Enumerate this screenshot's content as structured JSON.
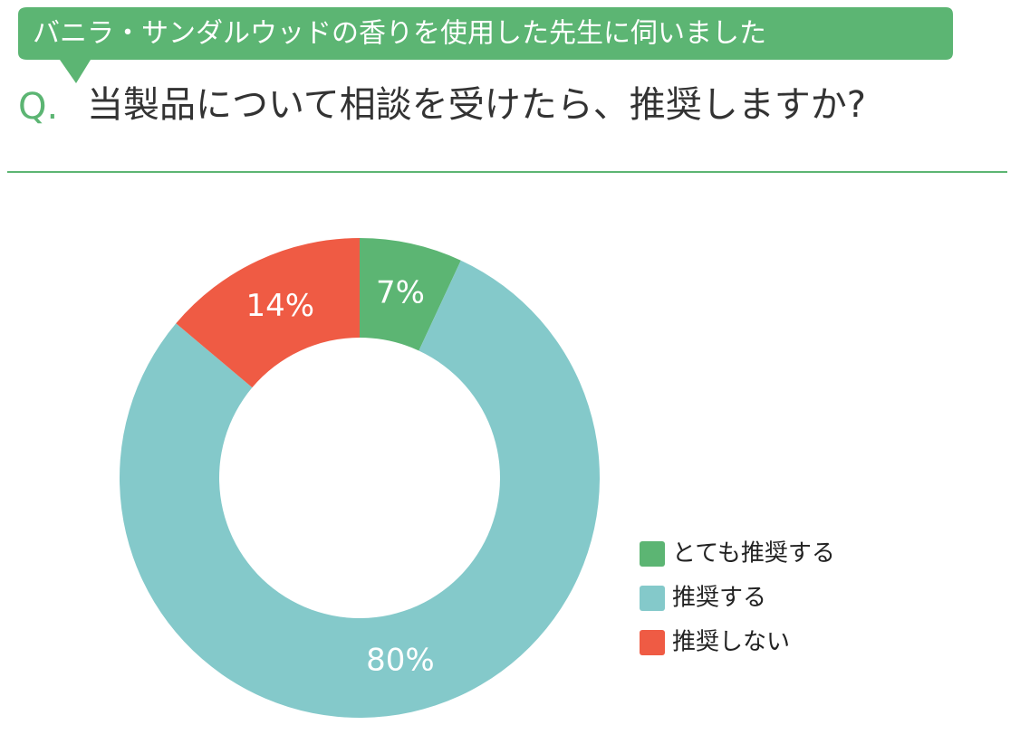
{
  "chart_data": {
    "type": "donut",
    "subtitle": "バニラ・サンダルウッドの香りを使用した先生に伺いました",
    "question_label": "Q.",
    "title": "当製品について相談を受けたら、推奨しますか?",
    "categories": [
      "とても推奨する",
      "推奨する",
      "推奨しない"
    ],
    "values": [
      7,
      80,
      14
    ],
    "value_labels": [
      "7%",
      "80%",
      "14%"
    ],
    "colors": [
      "#5cb573",
      "#84c9ca",
      "#ef5b44"
    ],
    "legend": "right"
  }
}
